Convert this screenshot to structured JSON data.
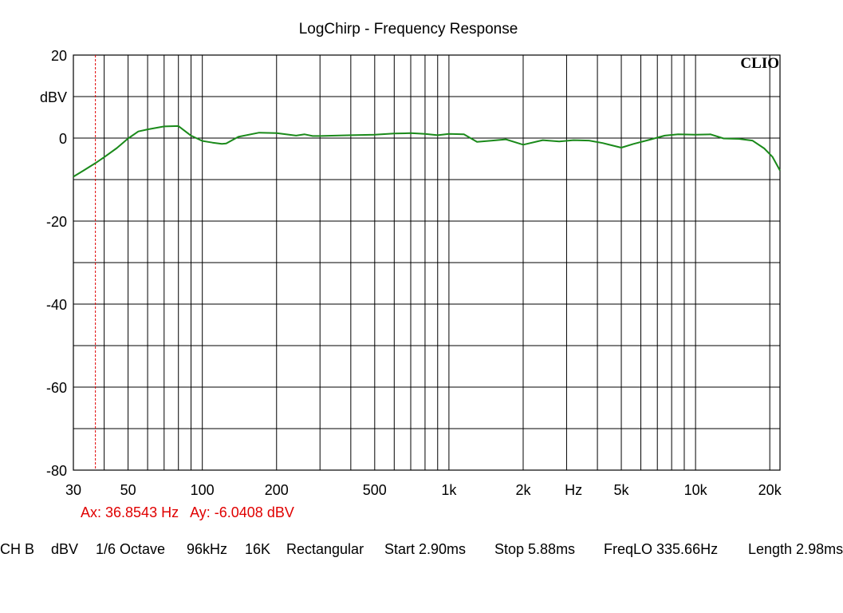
{
  "chart_data": {
    "type": "line",
    "title": "LogChirp - Frequency Response",
    "logo": "CLIO",
    "ylabel": "dBV",
    "ylim": [
      -80,
      20
    ],
    "xlim": [
      30,
      22000
    ],
    "x_scale": "log",
    "grid": true,
    "y_ticks": [
      {
        "value": 20,
        "label": "20"
      },
      {
        "value": 10,
        "label": "dBV"
      },
      {
        "value": 0,
        "label": "0"
      },
      {
        "value": -20,
        "label": "-20"
      },
      {
        "value": -40,
        "label": "-40"
      },
      {
        "value": -60,
        "label": "-60"
      },
      {
        "value": -80,
        "label": "-80"
      }
    ],
    "x_ticks": [
      {
        "value": 30,
        "label": "30"
      },
      {
        "value": 50,
        "label": "50"
      },
      {
        "value": 100,
        "label": "100"
      },
      {
        "value": 200,
        "label": "200"
      },
      {
        "value": 500,
        "label": "500"
      },
      {
        "value": 1000,
        "label": "1k"
      },
      {
        "value": 2000,
        "label": "2k"
      },
      {
        "value": 3200,
        "label": "Hz"
      },
      {
        "value": 5000,
        "label": "5k"
      },
      {
        "value": 10000,
        "label": "10k"
      },
      {
        "value": 20000,
        "label": "20k"
      }
    ],
    "x_gridlines": [
      40,
      50,
      60,
      70,
      80,
      90,
      100,
      200,
      300,
      400,
      500,
      600,
      700,
      800,
      900,
      1000,
      2000,
      3000,
      4000,
      5000,
      6000,
      7000,
      8000,
      9000,
      10000,
      20000
    ],
    "y_gridlines": [
      -70,
      -60,
      -50,
      -40,
      -30,
      -20,
      -10,
      0,
      10
    ],
    "cursor": {
      "x": 36.8543,
      "label": "Ax: 36.8543 Hz   Ay: -6.0408 dBV",
      "color": "#e00000"
    },
    "series": [
      {
        "color": "#1a8a1a",
        "points": [
          [
            30,
            -9.3
          ],
          [
            33,
            -7.8
          ],
          [
            36.85,
            -6.04
          ],
          [
            40,
            -4.6
          ],
          [
            45,
            -2.4
          ],
          [
            50,
            -0.1
          ],
          [
            55,
            1.6
          ],
          [
            60,
            2.1
          ],
          [
            70,
            2.8
          ],
          [
            80,
            2.9
          ],
          [
            90,
            0.6
          ],
          [
            100,
            -0.7
          ],
          [
            110,
            -1.1
          ],
          [
            120,
            -1.4
          ],
          [
            125,
            -1.3
          ],
          [
            140,
            0.3
          ],
          [
            170,
            1.3
          ],
          [
            200,
            1.2
          ],
          [
            240,
            0.6
          ],
          [
            260,
            0.9
          ],
          [
            280,
            0.5
          ],
          [
            300,
            0.5
          ],
          [
            400,
            0.7
          ],
          [
            500,
            0.8
          ],
          [
            600,
            1.1
          ],
          [
            700,
            1.2
          ],
          [
            800,
            1.0
          ],
          [
            900,
            0.7
          ],
          [
            1000,
            1.0
          ],
          [
            1150,
            0.9
          ],
          [
            1300,
            -0.9
          ],
          [
            1500,
            -0.6
          ],
          [
            1700,
            -0.3
          ],
          [
            2000,
            -1.6
          ],
          [
            2400,
            -0.5
          ],
          [
            2800,
            -0.8
          ],
          [
            3200,
            -0.5
          ],
          [
            3700,
            -0.6
          ],
          [
            4200,
            -1.2
          ],
          [
            5000,
            -2.3
          ],
          [
            5600,
            -1.4
          ],
          [
            6500,
            -0.4
          ],
          [
            7500,
            0.6
          ],
          [
            8500,
            0.9
          ],
          [
            10000,
            0.8
          ],
          [
            11500,
            0.9
          ],
          [
            13000,
            -0.1
          ],
          [
            15000,
            -0.2
          ],
          [
            17000,
            -0.6
          ],
          [
            19000,
            -2.5
          ],
          [
            20500,
            -4.5
          ],
          [
            22000,
            -7.8
          ]
        ]
      }
    ]
  },
  "status_bar": {
    "items": [
      "CH B",
      "dBV",
      "1/6 Octave",
      "96kHz",
      "16K",
      "Rectangular",
      "Start 2.90ms",
      "Stop 5.88ms",
      "FreqLO 335.66Hz",
      "Length 2.98ms"
    ]
  }
}
